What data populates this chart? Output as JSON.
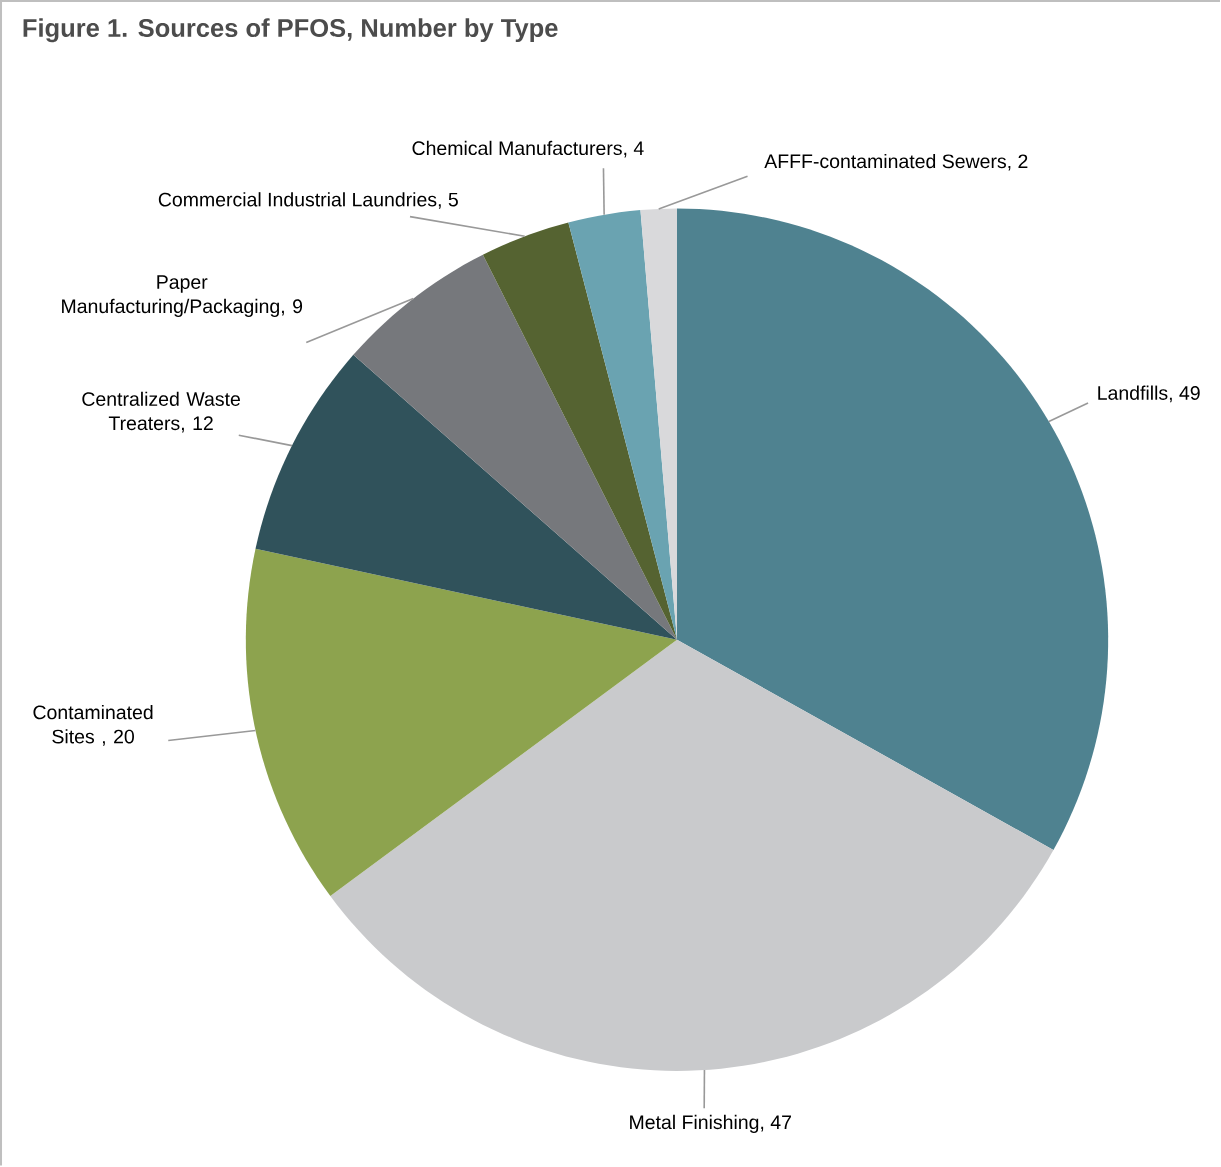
{
  "chart_data": {
    "type": "pie",
    "title": "Figure 1. Sources of PFOS, Number by Type",
    "categories": [
      "Landfills, 49",
      "Metal Finishing, 47",
      "Contaminated Sites , 20",
      "Centralized Waste Treaters, 12",
      "Paper Manufacturing/Packaging, 9",
      "Commercial Industrial Laundries, 5",
      "Chemical Manufacturers, 4",
      "AFFF-contaminated Sewers, 2"
    ],
    "values": [
      49,
      47,
      20,
      12,
      9,
      5,
      4,
      2
    ],
    "colors": [
      "#4f8290",
      "#c9cacc",
      "#8da34e",
      "#30525b",
      "#76787c",
      "#556331",
      "#6aa3b1",
      "#d9d9db"
    ]
  }
}
